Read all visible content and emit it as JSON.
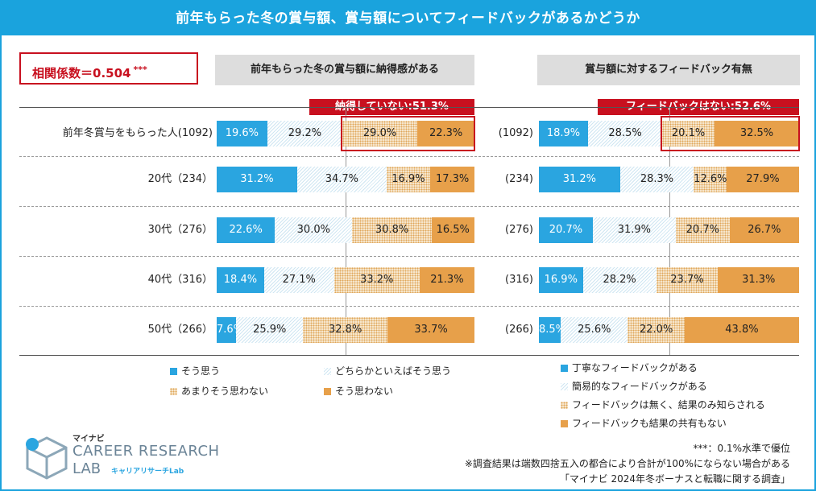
{
  "title": "前年もらった冬の賞与額、賞与額についてフィードバックがあるかどうか",
  "correlation": {
    "label": "相関係数＝0.504",
    "sig": "***"
  },
  "chart_data": [
    {
      "type": "bar",
      "title": "前年もらった冬の賞与額に納得感がある",
      "callout": "納得していない:51.3%",
      "categories": [
        "前年冬賞与をもらった人(1092)",
        "20代（234）",
        "30代（276）",
        "40代（316）",
        "50代（266）"
      ],
      "series": [
        {
          "name": "そう思う",
          "values": [
            19.6,
            31.2,
            22.6,
            18.4,
            7.6
          ],
          "labels": [
            "19.6%",
            "31.2%",
            "22.6%",
            "18.4%",
            "7.6%"
          ]
        },
        {
          "name": "どちらかといえばそう思う",
          "values": [
            29.2,
            34.7,
            30.0,
            27.1,
            25.9
          ],
          "labels": [
            "29.2%",
            "34.7%",
            "30.0%",
            "27.1%",
            "25.9%"
          ]
        },
        {
          "name": "あまりそう思わない",
          "values": [
            29.0,
            16.9,
            30.8,
            33.2,
            32.8
          ],
          "labels": [
            "29.0%",
            "16.9%",
            "30.8%",
            "33.2%",
            "32.8%"
          ]
        },
        {
          "name": "そう思わない",
          "values": [
            22.3,
            17.3,
            16.5,
            21.3,
            33.7
          ],
          "labels": [
            "22.3%",
            "17.3%",
            "16.5%",
            "21.3%",
            "33.7%"
          ]
        }
      ],
      "xlim": [
        0,
        100
      ]
    },
    {
      "type": "bar",
      "title": "賞与額に対するフィードバック有無",
      "callout": "フィードバックはない:52.6%",
      "categories": [
        "(1092)",
        "(234)",
        "(276)",
        "(316)",
        "(266)"
      ],
      "series": [
        {
          "name": "丁寧なフィードバックがある",
          "values": [
            18.9,
            31.2,
            20.7,
            16.9,
            8.5
          ],
          "labels": [
            "18.9%",
            "31.2%",
            "20.7%",
            "16.9%",
            "8.5%"
          ]
        },
        {
          "name": "簡易的なフィードバックがある",
          "values": [
            28.5,
            28.3,
            31.9,
            28.2,
            25.6
          ],
          "labels": [
            "28.5%",
            "28.3%",
            "31.9%",
            "28.2%",
            "25.6%"
          ]
        },
        {
          "name": "フィードバックは無く、結果のみ知らされる",
          "values": [
            20.1,
            12.6,
            20.7,
            23.7,
            22.0
          ],
          "labels": [
            "20.1%",
            "12.6%",
            "20.7%",
            "23.7%",
            "22.0%"
          ]
        },
        {
          "name": "フィードバックも結果の共有もない",
          "values": [
            32.5,
            27.9,
            26.7,
            31.3,
            43.8
          ],
          "labels": [
            "32.5%",
            "27.9%",
            "26.7%",
            "31.3%",
            "43.8%"
          ]
        }
      ],
      "xlim": [
        0,
        100
      ]
    }
  ],
  "colors": {
    "s0": "#2aa5e0",
    "s1": "#cfe6f2",
    "s2": "#f6e6cc",
    "s3": "#e7a04a",
    "accent": "#c8101f",
    "title_bg": "#1aa3dd"
  },
  "logo": {
    "brand": "マイナビ",
    "line1": "CAREER RESEARCH",
    "line2": "LAB",
    "sub": "キャリアリサーチLab"
  },
  "notes": [
    "***：0.1%水準で優位",
    "※調査結果は端数四捨五入の都合により合計が100%にならない場合がある",
    "「マイナビ 2024年冬ボーナスと転職に関する調査」"
  ]
}
